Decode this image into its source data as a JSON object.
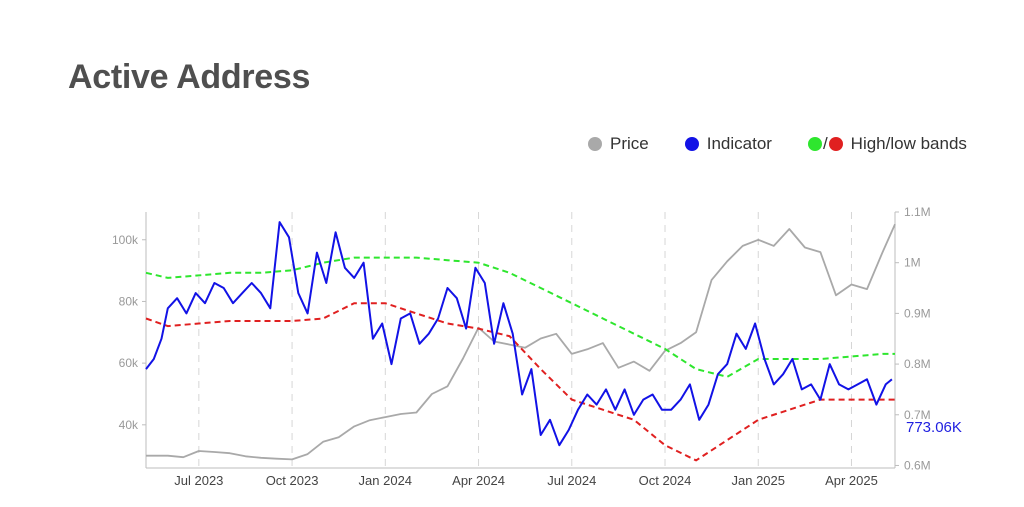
{
  "page_title": "Active Address",
  "legend": {
    "price": "Price",
    "indicator": "Indicator",
    "slash": "/",
    "bands": "High/low bands"
  },
  "colors": {
    "price": "#a9a9a9",
    "indicator": "#1212e6",
    "high_band": "#2ee62e",
    "low_band": "#e02020"
  },
  "chart_data": {
    "type": "line",
    "x_tick_labels": [
      "Jul 2023",
      "Oct 2023",
      "Jan 2024",
      "Apr 2024",
      "Jul 2024",
      "Oct 2024",
      "Jan 2025",
      "Apr 2025"
    ],
    "x_tick_positions": [
      1,
      4,
      7,
      10,
      13,
      16,
      19,
      22
    ],
    "x_range": [
      -0.7,
      23.4
    ],
    "left_axis": {
      "ticks": [
        40000,
        60000,
        80000,
        100000
      ],
      "labels": [
        "40k",
        "60k",
        "80k",
        "100k"
      ],
      "range": [
        26000,
        109000
      ]
    },
    "right_axis": {
      "ticks": [
        0.6,
        0.7,
        0.8,
        0.9,
        1.0,
        1.1
      ],
      "labels": [
        "0.6M",
        "0.7M",
        "0.8M",
        "0.9M",
        "1M",
        "1.1M"
      ],
      "range": [
        0.595,
        1.1
      ]
    },
    "last_value_label": "773.06K",
    "grid": "vertical dashed",
    "series": [
      {
        "name": "Price",
        "axis": "left",
        "x": [
          -0.7,
          0,
          0.5,
          1,
          1.5,
          2,
          2.5,
          3,
          3.5,
          4,
          4.5,
          5,
          5.5,
          6,
          6.5,
          7,
          7.5,
          8,
          8.5,
          9,
          9.5,
          10,
          10.5,
          11,
          11.5,
          12,
          12.5,
          13,
          13.5,
          14,
          14.5,
          15,
          15.5,
          16,
          16.5,
          17,
          17.5,
          18,
          18.5,
          19,
          19.5,
          20,
          20.5,
          21,
          21.5,
          22,
          22.5,
          23,
          23.4
        ],
        "values": [
          30000,
          30000,
          29500,
          31500,
          31200,
          30800,
          29800,
          29300,
          29000,
          28800,
          30500,
          34500,
          36000,
          39500,
          41500,
          42500,
          43500,
          44000,
          50000,
          52500,
          61500,
          71500,
          67000,
          66000,
          65000,
          68000,
          69500,
          63000,
          64500,
          66500,
          58500,
          60500,
          57500,
          64000,
          66500,
          70000,
          87000,
          93000,
          98000,
          100000,
          98000,
          103500,
          97500,
          96000,
          82000,
          85500,
          84000,
          96000,
          105000
        ]
      },
      {
        "name": "Indicator",
        "axis": "right",
        "x": [
          -0.7,
          -0.45,
          -0.2,
          0,
          0.3,
          0.6,
          0.9,
          1.2,
          1.5,
          1.8,
          2.1,
          2.4,
          2.7,
          3.0,
          3.3,
          3.6,
          3.9,
          4.2,
          4.5,
          4.8,
          5.1,
          5.4,
          5.7,
          6.0,
          6.3,
          6.6,
          6.9,
          7.2,
          7.5,
          7.8,
          8.1,
          8.4,
          8.7,
          9.0,
          9.3,
          9.6,
          9.9,
          10.2,
          10.5,
          10.8,
          11.1,
          11.4,
          11.7,
          12.0,
          12.3,
          12.6,
          12.9,
          13.2,
          13.5,
          13.8,
          14.1,
          14.4,
          14.7,
          15.0,
          15.3,
          15.6,
          15.9,
          16.2,
          16.5,
          16.8,
          17.1,
          17.4,
          17.7,
          18.0,
          18.3,
          18.6,
          18.9,
          19.2,
          19.5,
          19.8,
          20.1,
          20.4,
          20.7,
          21.0,
          21.3,
          21.6,
          21.9,
          22.2,
          22.5,
          22.8,
          23.1,
          23.3
        ],
        "values": [
          0.79,
          0.81,
          0.85,
          0.91,
          0.93,
          0.9,
          0.94,
          0.92,
          0.96,
          0.95,
          0.92,
          0.94,
          0.96,
          0.94,
          0.91,
          1.08,
          1.05,
          0.94,
          0.9,
          1.02,
          0.96,
          1.06,
          0.99,
          0.97,
          1.0,
          0.85,
          0.88,
          0.8,
          0.89,
          0.9,
          0.84,
          0.86,
          0.89,
          0.95,
          0.93,
          0.87,
          0.99,
          0.96,
          0.84,
          0.92,
          0.86,
          0.74,
          0.79,
          0.66,
          0.69,
          0.64,
          0.67,
          0.71,
          0.74,
          0.72,
          0.75,
          0.71,
          0.75,
          0.7,
          0.73,
          0.74,
          0.71,
          0.71,
          0.73,
          0.76,
          0.69,
          0.72,
          0.78,
          0.8,
          0.86,
          0.83,
          0.88,
          0.81,
          0.76,
          0.78,
          0.81,
          0.75,
          0.76,
          0.73,
          0.8,
          0.76,
          0.75,
          0.76,
          0.77,
          0.72,
          0.76,
          0.77
        ]
      },
      {
        "name": "High band",
        "axis": "right",
        "x": [
          -0.7,
          0,
          1,
          2,
          3,
          4,
          5,
          6,
          7,
          8,
          9,
          10,
          11,
          12,
          13,
          14,
          15,
          16,
          17,
          18,
          19,
          20,
          21,
          22,
          23,
          23.4
        ],
        "values": [
          0.98,
          0.97,
          0.975,
          0.98,
          0.98,
          0.985,
          1.0,
          1.01,
          1.01,
          1.01,
          1.005,
          1.0,
          0.98,
          0.95,
          0.92,
          0.89,
          0.86,
          0.83,
          0.79,
          0.775,
          0.81,
          0.81,
          0.81,
          0.815,
          0.82,
          0.82
        ]
      },
      {
        "name": "Low band",
        "axis": "right",
        "x": [
          -0.7,
          0,
          1,
          2,
          3,
          4,
          5,
          6,
          7,
          8,
          9,
          10,
          11,
          12,
          13,
          14,
          15,
          16,
          17,
          18,
          19,
          20,
          21,
          22,
          23,
          23.4
        ],
        "values": [
          0.89,
          0.875,
          0.88,
          0.885,
          0.885,
          0.885,
          0.89,
          0.92,
          0.92,
          0.9,
          0.88,
          0.87,
          0.855,
          0.79,
          0.73,
          0.71,
          0.69,
          0.64,
          0.61,
          0.65,
          0.69,
          0.71,
          0.73,
          0.73,
          0.73,
          0.73
        ]
      }
    ]
  }
}
